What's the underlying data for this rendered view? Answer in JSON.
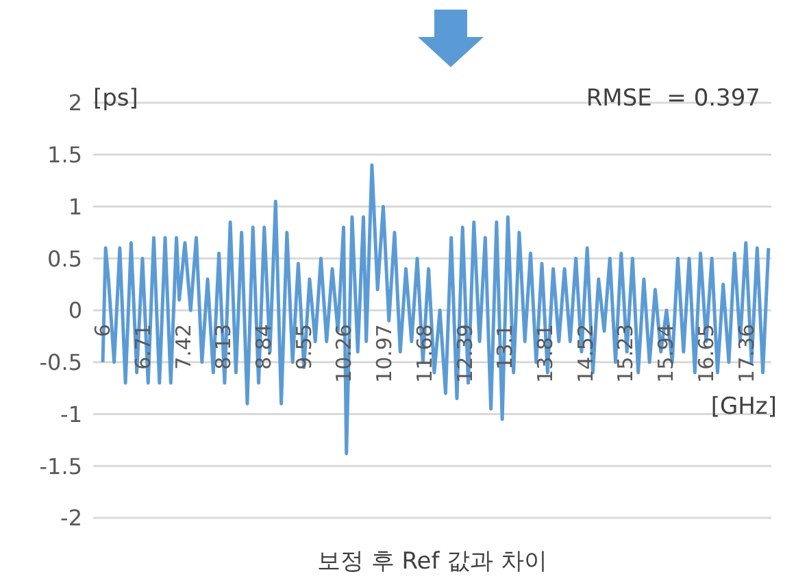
{
  "chart_data": {
    "type": "line",
    "title": "보정 후 Ref 값과 차이",
    "xlabel": "[GHz]",
    "ylabel": "[ps]",
    "annotations": [
      "RMSE  = 0.397"
    ],
    "x": [
      6.0,
      6.05,
      6.1,
      6.2,
      6.3,
      6.4,
      6.5,
      6.6,
      6.7,
      6.8,
      6.9,
      7.0,
      7.1,
      7.2,
      7.3,
      7.35,
      7.45,
      7.55,
      7.65,
      7.75,
      7.85,
      7.95,
      8.05,
      8.15,
      8.25,
      8.35,
      8.45,
      8.55,
      8.65,
      8.75,
      8.85,
      8.95,
      9.05,
      9.15,
      9.25,
      9.35,
      9.45,
      9.55,
      9.65,
      9.75,
      9.85,
      9.95,
      10.05,
      10.15,
      10.25,
      10.3,
      10.4,
      10.5,
      10.6,
      10.65,
      10.75,
      10.85,
      10.95,
      11.05,
      11.15,
      11.25,
      11.35,
      11.45,
      11.55,
      11.65,
      11.75,
      11.85,
      11.95,
      12.05,
      12.15,
      12.25,
      12.35,
      12.45,
      12.55,
      12.65,
      12.75,
      12.85,
      12.95,
      13.05,
      13.15,
      13.25,
      13.35,
      13.45,
      13.55,
      13.65,
      13.75,
      13.85,
      13.95,
      14.05,
      14.15,
      14.25,
      14.35,
      14.45,
      14.55,
      14.65,
      14.75,
      14.85,
      14.95,
      15.05,
      15.15,
      15.25,
      15.35,
      15.45,
      15.55,
      15.65,
      15.75,
      15.85,
      15.95,
      16.05,
      16.15,
      16.25,
      16.35,
      16.45,
      16.55,
      16.65,
      16.75,
      16.85,
      16.95,
      17.05,
      17.15,
      17.25,
      17.35,
      17.45,
      17.55,
      17.65,
      17.75
    ],
    "series": [
      {
        "color": "#5b9bd5",
        "values": [
          -0.5,
          0.6,
          0.3,
          -0.5,
          0.6,
          -0.7,
          0.65,
          -0.6,
          0.5,
          -0.7,
          0.7,
          -0.7,
          0.7,
          -0.7,
          0.7,
          0.1,
          0.65,
          0.0,
          0.7,
          -0.5,
          0.3,
          -0.6,
          0.55,
          -0.7,
          0.85,
          -0.6,
          0.75,
          -0.9,
          0.8,
          -0.7,
          0.8,
          -0.4,
          1.05,
          -0.9,
          0.75,
          -0.5,
          0.45,
          -0.55,
          0.3,
          -0.3,
          0.5,
          -0.3,
          0.4,
          -0.2,
          0.8,
          -1.38,
          0.9,
          -0.4,
          0.9,
          -0.3,
          1.4,
          0.2,
          1.0,
          -0.1,
          0.75,
          -0.4,
          0.4,
          -0.3,
          0.5,
          -0.5,
          0.4,
          -0.6,
          0.0,
          -0.8,
          0.7,
          -0.85,
          0.8,
          -0.7,
          0.85,
          -0.3,
          0.7,
          -0.95,
          0.85,
          -1.05,
          0.9,
          -0.6,
          0.75,
          -0.3,
          0.55,
          -0.5,
          0.45,
          -0.6,
          0.4,
          -0.3,
          0.4,
          -0.3,
          0.5,
          -0.4,
          0.6,
          -0.6,
          0.3,
          -0.2,
          0.5,
          -0.5,
          0.55,
          -0.4,
          0.5,
          -0.6,
          0.3,
          -0.5,
          0.2,
          -0.4,
          0.0,
          -0.5,
          0.5,
          -0.4,
          0.5,
          -0.6,
          0.55,
          -0.3,
          0.5,
          -0.6,
          0.25,
          -0.5,
          0.55,
          -0.3,
          0.65,
          -0.5,
          0.6,
          -0.6,
          0.6
        ]
      }
    ],
    "xlim": [
      5.83,
      17.8
    ],
    "xticks": [
      6,
      6.71,
      7.42,
      8.13,
      8.84,
      9.55,
      10.26,
      10.97,
      11.68,
      12.39,
      13.1,
      13.81,
      14.52,
      15.23,
      15.94,
      16.65,
      17.36
    ],
    "ylim": [
      -2,
      2
    ],
    "yticks": [
      -2,
      -1.5,
      -1,
      -0.5,
      0,
      0.5,
      1,
      1.5,
      2
    ],
    "grid": "y",
    "marker": "none",
    "line_style": "solid"
  }
}
